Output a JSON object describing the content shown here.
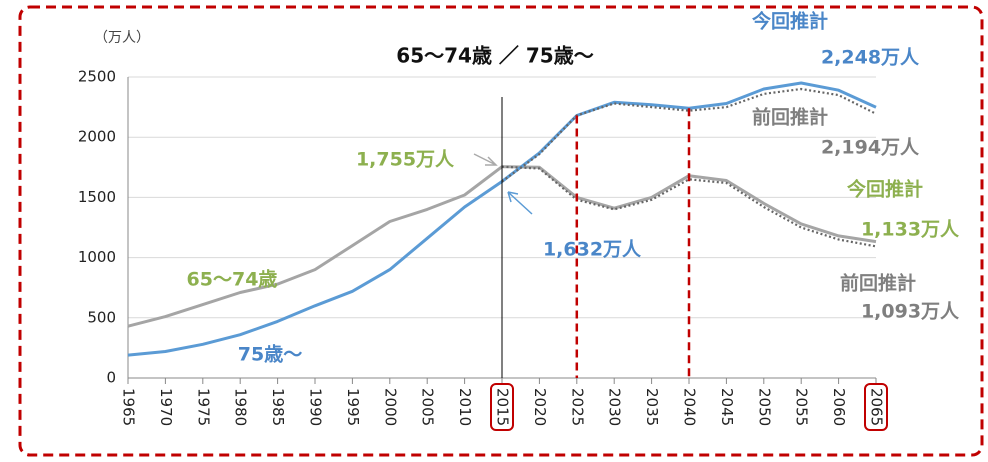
{
  "chart_data": {
    "type": "line",
    "title": "65～74歳 ／ 75歳～",
    "unit_label": "（万人）",
    "x": [
      1965,
      1970,
      1975,
      1980,
      1985,
      1990,
      1995,
      2000,
      2005,
      2010,
      2015,
      2020,
      2025,
      2030,
      2035,
      2040,
      2045,
      2050,
      2055,
      2060,
      2065
    ],
    "xlim": [
      1965,
      2065
    ],
    "xticks": [
      1965,
      1970,
      1975,
      1980,
      1985,
      1990,
      1995,
      2000,
      2005,
      2010,
      2015,
      2020,
      2025,
      2030,
      2035,
      2040,
      2045,
      2050,
      2055,
      2060,
      2065
    ],
    "highlighted_xticks": [
      2015,
      2065
    ],
    "ylim": [
      0,
      2500
    ],
    "yticks": [
      0,
      500,
      1000,
      1500,
      2000,
      2500
    ],
    "grid": true,
    "series": [
      {
        "name": "65～74歳",
        "color": "#a5a5a5",
        "style": "solid",
        "values": [
          430,
          510,
          610,
          710,
          780,
          900,
          1100,
          1300,
          1400,
          1520,
          1755,
          1750,
          1500,
          1410,
          1500,
          1680,
          1640,
          1450,
          1280,
          1180,
          1133
        ]
      },
      {
        "name": "75歳～",
        "color": "#5b9bd5",
        "style": "solid",
        "values": [
          190,
          220,
          280,
          360,
          470,
          600,
          720,
          900,
          1160,
          1420,
          1632,
          1870,
          2180,
          2290,
          2270,
          2240,
          2280,
          2400,
          2450,
          2390,
          2248
        ]
      },
      {
        "name": "前回推計",
        "color": "#666666",
        "style": "dotted",
        "values": [
          null,
          null,
          null,
          null,
          null,
          null,
          null,
          null,
          null,
          null,
          1632,
          1860,
          2180,
          2280,
          2250,
          2220,
          2250,
          2360,
          2400,
          2350,
          2194
        ]
      },
      {
        "name": "前回推計",
        "color": "#666666",
        "style": "dotted",
        "values": [
          null,
          null,
          null,
          null,
          null,
          null,
          null,
          null,
          null,
          null,
          1755,
          1740,
          1480,
          1400,
          1480,
          1650,
          1620,
          1420,
          1250,
          1150,
          1093
        ]
      }
    ],
    "vlines": [
      {
        "x": 2015,
        "color": "#000000",
        "style": "solid"
      },
      {
        "x": 2025,
        "color": "#c00000",
        "style": "dashed"
      },
      {
        "x": 2040,
        "color": "#c00000",
        "style": "dashed"
      }
    ],
    "annotations": [
      {
        "text": "今回推計",
        "color": "#4a86c8"
      },
      {
        "text": "2,248万人",
        "color": "#4a86c8"
      },
      {
        "text": "2,194万人",
        "color": "#7f7f7f"
      },
      {
        "text": "1,755万人",
        "color": "#8db04f"
      },
      {
        "text": "1,632万人",
        "color": "#4a86c8"
      },
      {
        "text": "今回推計",
        "color": "#8db04f"
      },
      {
        "text": "1,133万人",
        "color": "#8db04f"
      },
      {
        "text": "1,093万人",
        "color": "#7f7f7f"
      }
    ]
  }
}
